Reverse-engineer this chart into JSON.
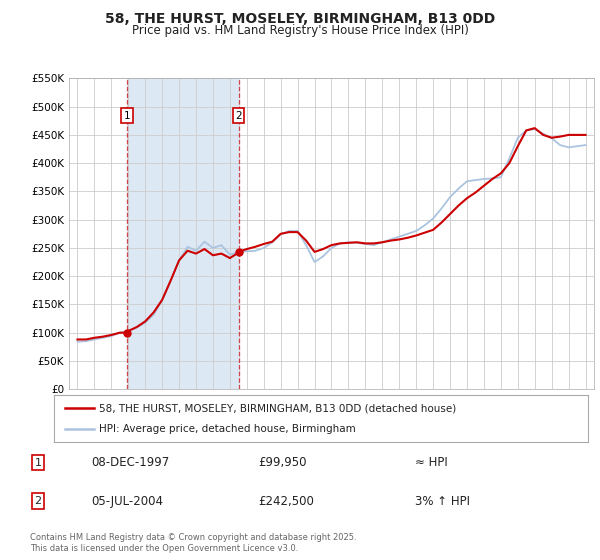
{
  "title": "58, THE HURST, MOSELEY, BIRMINGHAM, B13 0DD",
  "subtitle": "Price paid vs. HM Land Registry's House Price Index (HPI)",
  "background_color": "#ffffff",
  "grid_color": "#cccccc",
  "sale1_date": 1997.94,
  "sale1_price": 99950,
  "sale2_date": 2004.51,
  "sale2_price": 242500,
  "hpi_line_color": "#aac4e0",
  "price_line_color": "#cc0000",
  "shaded_region_color": "#dce9f5",
  "ylim_min": 0,
  "ylim_max": 550000,
  "ytick_values": [
    0,
    50000,
    100000,
    150000,
    200000,
    250000,
    300000,
    350000,
    400000,
    450000,
    500000,
    550000
  ],
  "ytick_labels": [
    "£0",
    "£50K",
    "£100K",
    "£150K",
    "£200K",
    "£250K",
    "£300K",
    "£350K",
    "£400K",
    "£450K",
    "£500K",
    "£550K"
  ],
  "xlim_min": 1994.5,
  "xlim_max": 2025.5,
  "xtick_values": [
    1995,
    1996,
    1997,
    1998,
    1999,
    2000,
    2001,
    2002,
    2003,
    2004,
    2005,
    2006,
    2007,
    2008,
    2009,
    2010,
    2011,
    2012,
    2013,
    2014,
    2015,
    2016,
    2017,
    2018,
    2019,
    2020,
    2021,
    2022,
    2023,
    2024,
    2025
  ],
  "legend_entries": [
    "58, THE HURST, MOSELEY, BIRMINGHAM, B13 0DD (detached house)",
    "HPI: Average price, detached house, Birmingham"
  ],
  "table_rows": [
    [
      "1",
      "08-DEC-1997",
      "£99,950",
      "≈ HPI"
    ],
    [
      "2",
      "05-JUL-2004",
      "£242,500",
      "3% ↑ HPI"
    ]
  ],
  "footnote": "Contains HM Land Registry data © Crown copyright and database right 2025.\nThis data is licensed under the Open Government Licence v3.0.",
  "hpi_years": [
    1995.0,
    1995.5,
    1996.0,
    1996.5,
    1997.0,
    1997.5,
    1998.0,
    1998.5,
    1999.0,
    1999.5,
    2000.0,
    2000.5,
    2001.0,
    2001.5,
    2002.0,
    2002.5,
    2003.0,
    2003.5,
    2004.0,
    2004.5,
    2005.0,
    2005.5,
    2006.0,
    2006.5,
    2007.0,
    2007.5,
    2008.0,
    2008.5,
    2009.0,
    2009.5,
    2010.0,
    2010.5,
    2011.0,
    2011.5,
    2012.0,
    2012.5,
    2013.0,
    2013.5,
    2014.0,
    2014.5,
    2015.0,
    2015.5,
    2016.0,
    2016.5,
    2017.0,
    2017.5,
    2018.0,
    2018.5,
    2019.0,
    2019.5,
    2020.0,
    2020.5,
    2021.0,
    2021.5,
    2022.0,
    2022.5,
    2023.0,
    2023.5,
    2024.0,
    2024.5,
    2025.0
  ],
  "hpi_values": [
    84000,
    85000,
    88000,
    91000,
    94000,
    100000,
    103000,
    109000,
    118000,
    132000,
    158000,
    192000,
    228000,
    252000,
    245000,
    261000,
    250000,
    255000,
    238000,
    243000,
    244000,
    245000,
    250000,
    260000,
    274000,
    280000,
    280000,
    255000,
    225000,
    235000,
    250000,
    258000,
    260000,
    259000,
    257000,
    255000,
    260000,
    265000,
    270000,
    275000,
    280000,
    290000,
    302000,
    320000,
    340000,
    355000,
    368000,
    370000,
    372000,
    373000,
    375000,
    408000,
    445000,
    458000,
    460000,
    452000,
    444000,
    432000,
    428000,
    430000,
    432000
  ],
  "price_years": [
    1995.0,
    1995.5,
    1996.0,
    1996.5,
    1997.0,
    1997.5,
    1997.94,
    1998.0,
    1998.5,
    1999.0,
    1999.5,
    2000.0,
    2000.5,
    2001.0,
    2001.5,
    2002.0,
    2002.5,
    2003.0,
    2003.5,
    2004.0,
    2004.42,
    2004.51,
    2004.6,
    2005.0,
    2005.5,
    2006.0,
    2006.5,
    2007.0,
    2007.5,
    2008.0,
    2008.5,
    2009.0,
    2009.5,
    2010.0,
    2010.5,
    2011.0,
    2011.5,
    2012.0,
    2012.5,
    2013.0,
    2013.5,
    2014.0,
    2014.5,
    2015.0,
    2015.5,
    2016.0,
    2016.5,
    2017.0,
    2017.5,
    2018.0,
    2018.5,
    2019.0,
    2019.5,
    2020.0,
    2020.5,
    2021.0,
    2021.5,
    2022.0,
    2022.5,
    2023.0,
    2023.5,
    2024.0,
    2024.5,
    2025.0
  ],
  "price_values": [
    88000,
    88000,
    91000,
    93000,
    96000,
    100000,
    99950,
    103000,
    110000,
    120000,
    136000,
    158000,
    192000,
    228000,
    245000,
    240000,
    248000,
    237000,
    240000,
    232000,
    240000,
    242500,
    244000,
    248000,
    252000,
    257000,
    261000,
    275000,
    278000,
    278000,
    263000,
    243000,
    248000,
    255000,
    258000,
    259000,
    260000,
    258000,
    258000,
    260000,
    263000,
    265000,
    268000,
    272000,
    277000,
    282000,
    295000,
    310000,
    325000,
    338000,
    348000,
    360000,
    372000,
    382000,
    400000,
    430000,
    458000,
    462000,
    450000,
    445000,
    447000,
    450000,
    450000,
    450000
  ]
}
